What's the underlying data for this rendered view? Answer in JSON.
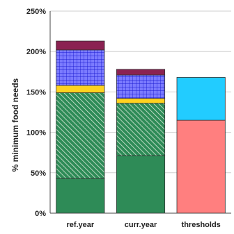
{
  "chart_data": {
    "type": "bar",
    "stacked": true,
    "title": "",
    "xlabel": "",
    "ylabel": "% minimum food needs",
    "ylim": [
      0,
      250
    ],
    "yticks": [
      "0%",
      "50%",
      "100%",
      "150%",
      "200%",
      "250%"
    ],
    "ytick_values": [
      0,
      50,
      100,
      150,
      200,
      250
    ],
    "grid": true,
    "legend": "none",
    "categories": [
      "ref.year",
      "curr.year",
      "thresholds"
    ],
    "series": [
      {
        "values": [
          43,
          71,
          0
        ],
        "color": "#2e8b57",
        "pattern": "solid"
      },
      {
        "values": [
          106,
          65,
          0
        ],
        "color": "#2e8b57",
        "pattern": "hatch"
      },
      {
        "values": [
          9,
          6,
          0
        ],
        "color": "#ffd21f",
        "pattern": "solid"
      },
      {
        "values": [
          44,
          29,
          0
        ],
        "color": "#7b7bff",
        "pattern": "grid"
      },
      {
        "values": [
          11,
          7,
          0
        ],
        "color": "#8b2252",
        "pattern": "solid"
      },
      {
        "values": [
          0,
          0,
          115
        ],
        "color": "#ff7f7f",
        "pattern": "solid"
      },
      {
        "values": [
          0,
          0,
          53
        ],
        "color": "#22ccff",
        "pattern": "solid"
      }
    ]
  }
}
